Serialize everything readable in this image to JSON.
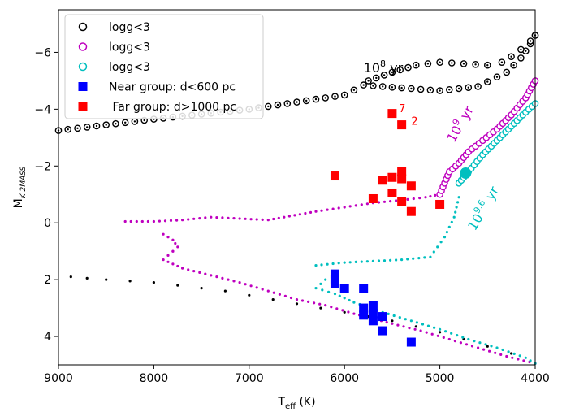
{
  "chart_data": {
    "type": "scatter",
    "title": "",
    "xlabel": "T",
    "xlabel_sub": "eff",
    "xlabel_unit": " (K)",
    "ylabel": "M",
    "ylabel_sub": "K 2MASS",
    "xlim": [
      9000,
      4000
    ],
    "ylim": [
      5.0,
      -7.5
    ],
    "x_ticks": [
      9000,
      8000,
      7000,
      6000,
      5000,
      4000
    ],
    "y_ticks": [
      -6,
      -4,
      -2,
      0,
      2,
      4
    ],
    "y_tick_labels": [
      "−6",
      "−4",
      "−2",
      "0",
      "2",
      "4"
    ],
    "legend": {
      "position": "top-left",
      "entries": [
        {
          "label": "logg<3",
          "marker": "open-circle",
          "color": "#000000"
        },
        {
          "label": "logg<3",
          "marker": "open-circle",
          "color": "#bf00bf"
        },
        {
          "label": "logg<3",
          "marker": "open-circle",
          "color": "#00bfbf"
        },
        {
          "label": "Near group: d<600 pc",
          "marker": "square",
          "color": "#0000ff"
        },
        {
          "label": " Far group: d>1000 pc",
          "marker": "square",
          "color": "#ff0000"
        }
      ]
    },
    "isochrones": [
      {
        "name": "1e8 yr",
        "color": "#000000",
        "dwarf_track": [
          [
            8870,
            1.9
          ],
          [
            8700,
            1.95
          ],
          [
            8500,
            2.0
          ],
          [
            8250,
            2.05
          ],
          [
            8000,
            2.1
          ],
          [
            7750,
            2.2
          ],
          [
            7500,
            2.3
          ],
          [
            7250,
            2.4
          ],
          [
            7000,
            2.55
          ],
          [
            6750,
            2.7
          ],
          [
            6500,
            2.85
          ],
          [
            6250,
            3.0
          ],
          [
            6000,
            3.15
          ],
          [
            5750,
            3.3
          ],
          [
            5500,
            3.45
          ],
          [
            5250,
            3.65
          ],
          [
            5000,
            3.85
          ],
          [
            4750,
            4.1
          ],
          [
            4500,
            4.35
          ],
          [
            4250,
            4.6
          ],
          [
            4000,
            4.95
          ]
        ],
        "giant_track": [
          [
            9000,
            -3.25
          ],
          [
            8000,
            -3.65
          ],
          [
            7000,
            -4.0
          ],
          [
            6000,
            -4.5
          ],
          [
            5800,
            -4.85
          ],
          [
            5000,
            -4.65
          ],
          [
            4600,
            -4.8
          ],
          [
            4300,
            -5.3
          ],
          [
            4150,
            -5.8
          ],
          [
            4050,
            -6.3
          ],
          [
            4000,
            -6.6
          ]
        ],
        "blue_loop": [
          [
            5750,
            -5.0
          ],
          [
            5500,
            -5.3
          ],
          [
            5250,
            -5.55
          ],
          [
            5000,
            -5.65
          ],
          [
            4750,
            -5.6
          ],
          [
            4500,
            -5.55
          ],
          [
            4350,
            -5.65
          ],
          [
            4250,
            -5.85
          ],
          [
            4150,
            -6.1
          ],
          [
            4050,
            -6.4
          ],
          [
            4000,
            -6.6
          ]
        ]
      },
      {
        "name": "1e9 yr",
        "color": "#bf00bf",
        "dwarf_track": [
          [
            7800,
            1.0
          ],
          [
            7900,
            1.3
          ],
          [
            7700,
            1.6
          ],
          [
            7400,
            1.85
          ],
          [
            7100,
            2.1
          ],
          [
            6800,
            2.4
          ],
          [
            6500,
            2.7
          ],
          [
            6200,
            2.9
          ],
          [
            5900,
            3.2
          ],
          [
            5500,
            3.55
          ],
          [
            5200,
            3.8
          ],
          [
            4900,
            4.1
          ],
          [
            4600,
            4.4
          ],
          [
            4300,
            4.7
          ],
          [
            4000,
            4.95
          ]
        ],
        "subgiant_track": [
          [
            8300,
            -0.05
          ],
          [
            8000,
            -0.05
          ],
          [
            7700,
            -0.1
          ],
          [
            7400,
            -0.2
          ],
          [
            7100,
            -0.15
          ],
          [
            6800,
            -0.1
          ],
          [
            6300,
            -0.4
          ],
          [
            6000,
            -0.55
          ],
          [
            5700,
            -0.7
          ],
          [
            5400,
            -0.8
          ],
          [
            5150,
            -0.9
          ],
          [
            5000,
            -1.0
          ]
        ],
        "turnoff_curve": [
          [
            7900,
            0.4
          ],
          [
            7800,
            0.6
          ],
          [
            7750,
            0.85
          ],
          [
            7800,
            1.0
          ]
        ],
        "giant_track": [
          [
            5000,
            -1.0
          ],
          [
            4950,
            -1.4
          ],
          [
            4900,
            -1.8
          ],
          [
            4800,
            -2.1
          ],
          [
            4700,
            -2.5
          ],
          [
            4550,
            -2.9
          ],
          [
            4400,
            -3.3
          ],
          [
            4250,
            -3.8
          ],
          [
            4100,
            -4.4
          ],
          [
            4000,
            -5.0
          ]
        ]
      },
      {
        "name": "1e9.6 yr",
        "color": "#00bfbf",
        "dwarf_track": [
          [
            6200,
            2.0
          ],
          [
            6300,
            2.3
          ],
          [
            6100,
            2.5
          ],
          [
            5900,
            2.8
          ],
          [
            5600,
            3.15
          ],
          [
            5300,
            3.45
          ],
          [
            5000,
            3.75
          ],
          [
            4700,
            4.1
          ],
          [
            4400,
            4.4
          ],
          [
            4100,
            4.75
          ],
          [
            4000,
            4.95
          ]
        ],
        "subgiant_track": [
          [
            6300,
            1.5
          ],
          [
            6000,
            1.4
          ],
          [
            5700,
            1.35
          ],
          [
            5400,
            1.3
          ],
          [
            5100,
            1.2
          ],
          [
            4950,
            0.5
          ],
          [
            4850,
            -0.2
          ],
          [
            4800,
            -0.9
          ]
        ],
        "giant_track": [
          [
            4800,
            -1.4
          ],
          [
            4700,
            -1.8
          ],
          [
            4550,
            -2.4
          ],
          [
            4400,
            -2.9
          ],
          [
            4250,
            -3.4
          ],
          [
            4100,
            -3.9
          ],
          [
            4000,
            -4.2
          ]
        ],
        "red_clump": [
          4730,
          -1.75
        ]
      }
    ],
    "near_group": [
      [
        6100,
        1.8
      ],
      [
        6100,
        2.0
      ],
      [
        6100,
        2.15
      ],
      [
        6000,
        2.3
      ],
      [
        5800,
        2.3
      ],
      [
        5800,
        3.0
      ],
      [
        5800,
        3.25
      ],
      [
        5700,
        2.9
      ],
      [
        5700,
        3.2
      ],
      [
        5700,
        3.45
      ],
      [
        5600,
        3.3
      ],
      [
        5600,
        3.8
      ],
      [
        5300,
        4.2
      ]
    ],
    "far_group": [
      [
        5500,
        -3.85
      ],
      [
        5400,
        -3.45
      ],
      [
        6100,
        -1.65
      ],
      [
        5600,
        -1.5
      ],
      [
        5500,
        -1.6
      ],
      [
        5400,
        -1.8
      ],
      [
        5400,
        -1.55
      ],
      [
        5300,
        -1.3
      ],
      [
        5500,
        -1.05
      ],
      [
        5700,
        -0.85
      ],
      [
        5400,
        -0.75
      ],
      [
        5300,
        -0.4
      ],
      [
        5000,
        -0.65
      ]
    ],
    "annotations": [
      {
        "text": "10",
        "sup": "8",
        "suffix": " yr",
        "x": 5800,
        "y": -5.3,
        "color": "#000000",
        "rotation": 0
      },
      {
        "text": "10",
        "sup": "9",
        "suffix": " yr",
        "x": 4850,
        "y": -2.8,
        "color": "#bf00bf",
        "rotation": -60
      },
      {
        "text": "10",
        "sup": "9.6",
        "suffix": " yr",
        "x": 4630,
        "y": 0.3,
        "color": "#00bfbf",
        "rotation": -60
      },
      {
        "text": "7",
        "x": 5430,
        "y": -3.9,
        "color": "#ff0000",
        "rotation": 0
      },
      {
        "text": "2",
        "x": 5300,
        "y": -3.45,
        "color": "#ff0000",
        "rotation": 0
      }
    ]
  }
}
